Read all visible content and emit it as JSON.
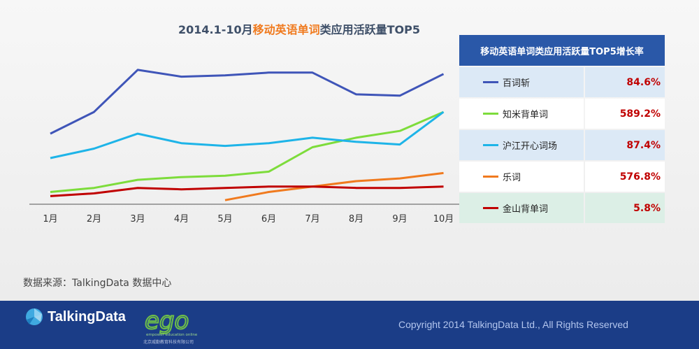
{
  "chart_data": {
    "type": "line",
    "title": {
      "prefix": "2014.1-10月",
      "highlight": "移动英语单词",
      "suffix": "类应用活跃量TOP5"
    },
    "categories": [
      "1月",
      "2月",
      "3月",
      "4月",
      "5月",
      "6月",
      "7月",
      "8月",
      "9月",
      "10月"
    ],
    "ylim": [
      0,
      100
    ],
    "grid": false,
    "legend_placement": "right table",
    "series": [
      {
        "name": "百词斩",
        "color": "#3f55b8",
        "values": [
          52,
          68,
          99,
          94,
          95,
          97,
          97,
          81,
          80,
          96
        ]
      },
      {
        "name": "知米背单词",
        "color": "#7ddc3b",
        "values": [
          9,
          12,
          18,
          20,
          21,
          24,
          42,
          49,
          54,
          68
        ]
      },
      {
        "name": "沪江开心词场",
        "color": "#1eb4e8",
        "values": [
          34,
          41,
          52,
          45,
          43,
          45,
          49,
          46,
          44,
          68
        ]
      },
      {
        "name": "乐词",
        "color": "#f07a1e",
        "values": [
          null,
          null,
          null,
          null,
          3,
          9,
          13,
          17,
          19,
          23
        ]
      },
      {
        "name": "金山背单词",
        "color": "#c00000",
        "values": [
          6,
          8,
          12,
          11,
          12,
          13,
          13,
          12,
          12,
          13
        ]
      }
    ]
  },
  "legend": {
    "header": "移动英语单词类应用活跃量TOP5增长率",
    "rows": [
      {
        "name": "百词斩",
        "growth": "84.6%",
        "color": "#3f55b8",
        "bg": "#dce9f6"
      },
      {
        "name": "知米背单词",
        "growth": "589.2%",
        "color": "#7ddc3b",
        "bg": "#ffffff"
      },
      {
        "name": "沪江开心词场",
        "growth": "87.4%",
        "color": "#1eb4e8",
        "bg": "#dce9f6"
      },
      {
        "name": "乐词",
        "growth": "576.8%",
        "color": "#f07a1e",
        "bg": "#ffffff"
      },
      {
        "name": "金山背单词",
        "growth": "5.8%",
        "color": "#c00000",
        "bg": "#dcefe6"
      }
    ]
  },
  "source": "数据来源：TalkingData 数据中心",
  "footer": {
    "brand": "TalkingData",
    "partner_logo": "ego",
    "partner_tagline": "empower education online",
    "partner_name": "北京威勤教育科技有限公司",
    "copyright": "Copyright 2014 TalkingData Ltd., All Rights Reserved"
  }
}
